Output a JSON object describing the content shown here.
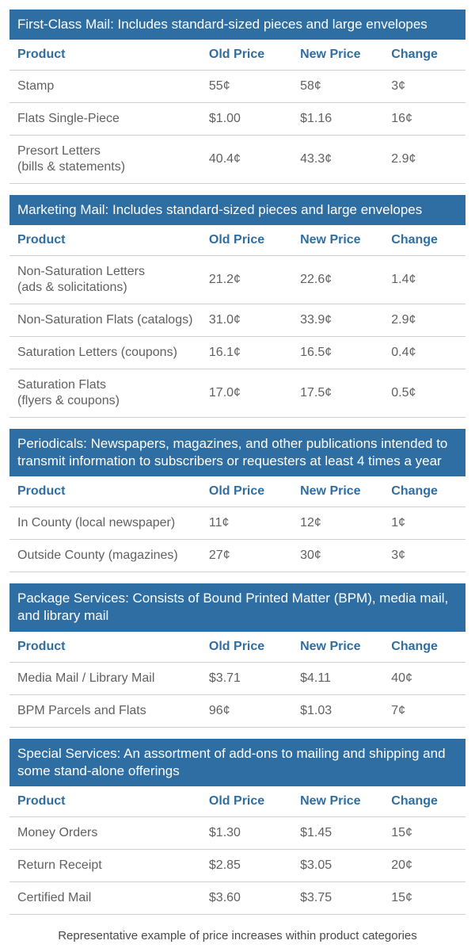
{
  "colors": {
    "header_bg": "#2f6ea3",
    "header_fg": "#ffffff",
    "col_header_fg": "#2f6ea3",
    "cell_fg": "#616161",
    "border": "#d0d0d0",
    "caption_fg": "#4a4a4a"
  },
  "columns": {
    "product": "Product",
    "old": "Old Price",
    "new": "New Price",
    "change": "Change"
  },
  "sections": [
    {
      "title": "First-Class Mail: Includes standard-sized pieces and large envelopes",
      "rows": [
        {
          "product": "Stamp",
          "old": "55¢",
          "new": "58¢",
          "change": "3¢"
        },
        {
          "product": "Flats Single-Piece",
          "old": "$1.00",
          "new": "$1.16",
          "change": "16¢"
        },
        {
          "product": "Presort Letters\n(bills & statements)",
          "old": "40.4¢",
          "new": "43.3¢",
          "change": "2.9¢"
        }
      ]
    },
    {
      "title": "Marketing Mail: Includes standard-sized pieces and large envelopes",
      "rows": [
        {
          "product": "Non-Saturation Letters\n(ads & solicitations)",
          "old": "21.2¢",
          "new": "22.6¢",
          "change": "1.4¢"
        },
        {
          "product": "Non-Saturation Flats (catalogs)",
          "old": "31.0¢",
          "new": "33.9¢",
          "change": "2.9¢"
        },
        {
          "product": "Saturation Letters (coupons)",
          "old": "16.1¢",
          "new": "16.5¢",
          "change": "0.4¢"
        },
        {
          "product": "Saturation Flats\n(flyers & coupons)",
          "old": "17.0¢",
          "new": "17.5¢",
          "change": "0.5¢"
        }
      ]
    },
    {
      "title": "Periodicals: Newspapers, magazines, and other publications intended to transmit information to subscribers or requesters at least 4 times a year",
      "rows": [
        {
          "product": "In County (local newspaper)",
          "old": "11¢",
          "new": "12¢",
          "change": "1¢"
        },
        {
          "product": "Outside County (magazines)",
          "old": "27¢",
          "new": "30¢",
          "change": "3¢"
        }
      ]
    },
    {
      "title": "Package Services: Consists of Bound Printed Matter (BPM), media mail, and library mail",
      "rows": [
        {
          "product": "Media Mail / Library Mail",
          "old": "$3.71",
          "new": "$4.11",
          "change": "40¢"
        },
        {
          "product": "BPM Parcels and Flats",
          "old": "96¢",
          "new": "$1.03",
          "change": "7¢"
        }
      ]
    },
    {
      "title": "Special Services: An assortment of add-ons to mailing and shipping and some stand-alone offerings",
      "rows": [
        {
          "product": "Money Orders",
          "old": "$1.30",
          "new": "$1.45",
          "change": "15¢"
        },
        {
          "product": "Return Receipt",
          "old": "$2.85",
          "new": "$3.05",
          "change": "20¢"
        },
        {
          "product": "Certified Mail",
          "old": "$3.60",
          "new": "$3.75",
          "change": "15¢"
        }
      ]
    }
  ],
  "caption": "Representative example of price increases within product categories"
}
